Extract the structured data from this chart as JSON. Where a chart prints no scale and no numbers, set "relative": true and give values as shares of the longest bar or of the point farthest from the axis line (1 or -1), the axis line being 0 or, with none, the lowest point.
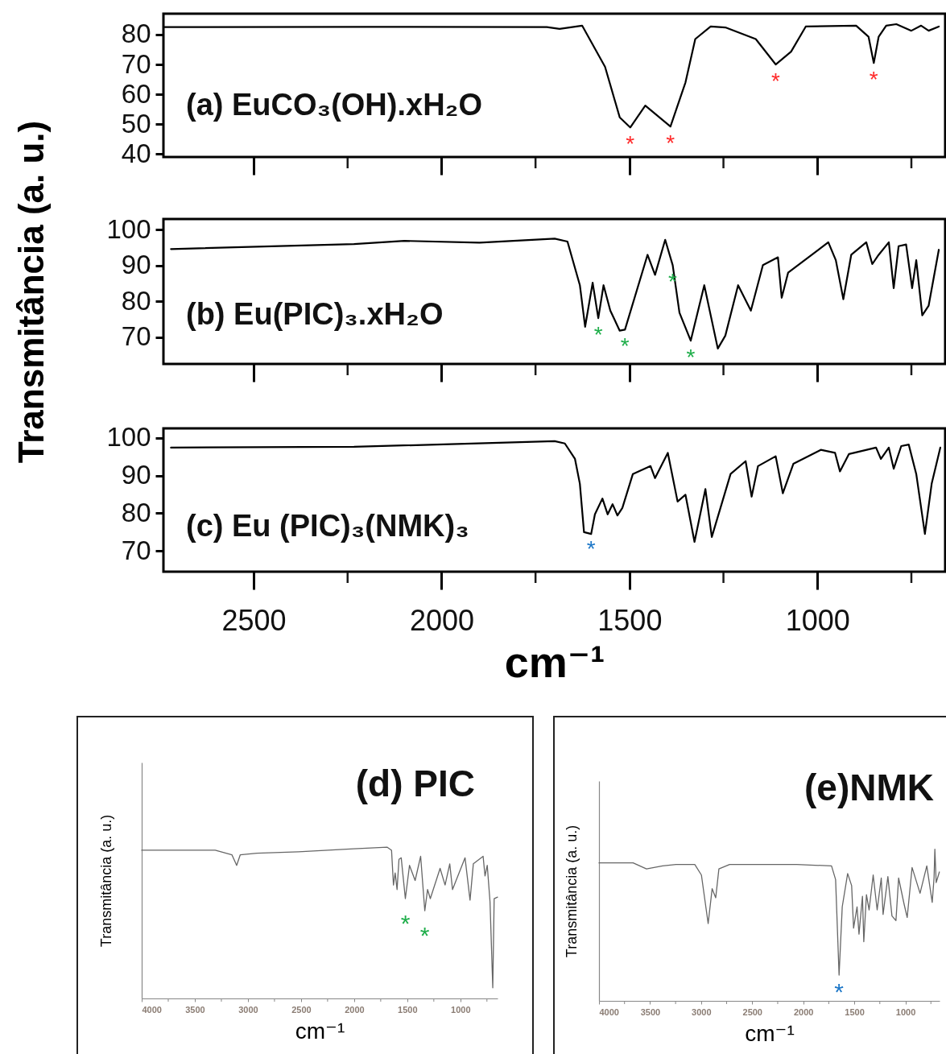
{
  "chart_data": [
    {
      "type": "line",
      "title": "(a) EuCO₃(OH).xH₂O",
      "color": "#000000",
      "xlim": [
        2740,
        660
      ],
      "xticks": [
        2500,
        {
          "value": 2250,
          "label": null
        },
        2000,
        {
          "value": 1750,
          "label": null
        },
        1500,
        {
          "value": 1250,
          "label": null
        },
        1000,
        {
          "value": 750,
          "label": null
        }
      ],
      "ylim": [
        39,
        87
      ],
      "yticks": [
        40,
        50,
        60,
        70,
        80
      ],
      "tick_labels": "y",
      "x": [
        2740,
        2200,
        1720,
        1686,
        1626,
        1565,
        1526,
        1498,
        1458,
        1391,
        1351,
        1325,
        1284,
        1245,
        1164,
        1111,
        1070,
        1031,
        897,
        864,
        850,
        837,
        817,
        790,
        750,
        724,
        704,
        677
      ],
      "values": [
        82.5,
        82.6,
        82.5,
        81.9,
        83,
        69.2,
        52.3,
        48.9,
        56.2,
        49.2,
        64,
        78.5,
        82.7,
        82.4,
        78.5,
        70,
        74.3,
        82.7,
        83,
        79.3,
        70.5,
        79.3,
        83,
        83.5,
        81.3,
        83,
        81.3,
        82.7
      ],
      "annotations": [
        {
          "text": "*",
          "x": 1498,
          "y": 48.9
        },
        {
          "text": "*",
          "x": 1391,
          "y": 49.2
        },
        {
          "text": "*",
          "x": 1111,
          "y": 70
        },
        {
          "text": "*",
          "x": 850,
          "y": 70.5
        }
      ]
    },
    {
      "type": "line",
      "title": "(b) Eu(PIC)₃.xH₂O",
      "ylabel": "Transmitância (a. u.)",
      "color": "#000000",
      "xlim": [
        2740,
        660
      ],
      "xticks": [
        2500,
        {
          "value": 2250,
          "label": null
        },
        2000,
        {
          "value": 1750,
          "label": null
        },
        1500,
        {
          "value": 1250,
          "label": null
        },
        1000,
        {
          "value": 750,
          "label": null
        }
      ],
      "ylim": [
        62.5,
        103
      ],
      "yticks": [
        70,
        80,
        90,
        100
      ],
      "tick_labels": "y",
      "x": [
        2720,
        2233,
        2099,
        1899,
        1699,
        1665,
        1632,
        1618,
        1598,
        1583,
        1569,
        1551,
        1526,
        1512,
        1452,
        1432,
        1405,
        1385,
        1367,
        1337,
        1301,
        1265,
        1245,
        1211,
        1177,
        1145,
        1105,
        1095,
        1078,
        971,
        951,
        931,
        910,
        870,
        854,
        837,
        810,
        797,
        784,
        764,
        748,
        737,
        721,
        704,
        677
      ],
      "values": [
        94.6,
        96.0,
        96.9,
        96.4,
        97.5,
        96.7,
        84.5,
        72.9,
        85.2,
        75.3,
        84.5,
        77.4,
        71.8,
        72.1,
        93.0,
        87.4,
        97.2,
        90.1,
        76.8,
        69.0,
        84.5,
        66.8,
        70.4,
        84.5,
        77.4,
        90.1,
        92.3,
        81.0,
        88.0,
        96.5,
        91.5,
        80.6,
        93.0,
        96.5,
        90.4,
        93.0,
        96.5,
        83.7,
        95.4,
        95.9,
        83.7,
        91.5,
        76.1,
        78.8,
        94.4
      ],
      "annotations": [
        {
          "text": "*",
          "x": 1583,
          "y": 75.3
        },
        {
          "text": "*",
          "x": 1512,
          "y": 72.1
        },
        {
          "text": "*",
          "x": 1385,
          "y": 90.1
        },
        {
          "text": "*",
          "x": 1337,
          "y": 69.0
        }
      ]
    },
    {
      "type": "line",
      "title": "(c) Eu (PIC)₃(NMK)₃",
      "xlabel": "cm⁻¹",
      "color": "#000000",
      "xlim": [
        2740,
        660
      ],
      "xticks": [
        2500,
        {
          "value": 2250,
          "label": null
        },
        2000,
        {
          "value": 1750,
          "label": null
        },
        1500,
        {
          "value": 1250,
          "label": null
        },
        1000,
        {
          "value": 750,
          "label": null
        }
      ],
      "ylim": [
        64.5,
        102.5
      ],
      "yticks": [
        70,
        80,
        90,
        100
      ],
      "x": [
        2720,
        2233,
        1699,
        1672,
        1645,
        1632,
        1621,
        1602,
        1592,
        1572,
        1558,
        1545,
        1532,
        1519,
        1491,
        1444,
        1432,
        1398,
        1372,
        1351,
        1327,
        1298,
        1281,
        1231,
        1191,
        1175,
        1158,
        1111,
        1092,
        1064,
        991,
        953,
        940,
        916,
        844,
        831,
        810,
        797,
        777,
        757,
        737,
        714,
        696,
        673
      ],
      "values": [
        97.4,
        97.6,
        99.1,
        98.5,
        94.4,
        87.8,
        75.0,
        74.5,
        79.7,
        83.9,
        79.7,
        82.4,
        79.4,
        81.4,
        90.4,
        92.5,
        89.3,
        96.0,
        83.1,
        84.9,
        72.4,
        86.4,
        73.7,
        90.4,
        93.8,
        84.4,
        92.5,
        95.1,
        85.3,
        93.1,
        96.8,
        96.0,
        91.1,
        95.7,
        97.4,
        94.4,
        97.4,
        91.8,
        97.8,
        98.2,
        90.4,
        74.5,
        87.8,
        97.4
      ],
      "annotations": [
        {
          "text": "*",
          "x": 1602,
          "y": 74.5
        }
      ]
    },
    {
      "type": "line",
      "title": "(d) PIC",
      "xlabel": "cm⁻¹",
      "ylabel": "Transmitância (a. u.)",
      "relative": true,
      "color": "#666666",
      "xlim": [
        4000,
        650
      ],
      "xticks": [
        4000,
        {
          "value": 3750,
          "label": null
        },
        3500,
        {
          "value": 3250,
          "label": null
        },
        3000,
        {
          "value": 2750,
          "label": null
        },
        2500,
        {
          "value": 2250,
          "label": null
        },
        2000,
        {
          "value": 1750,
          "label": null
        },
        1500,
        {
          "value": 1250,
          "label": null
        },
        1000,
        {
          "value": 750,
          "label": null
        }
      ],
      "x": [
        4000,
        3308,
        3151,
        3106,
        3072,
        2916,
        2524,
        2001,
        1688,
        1648,
        1630,
        1614,
        1596,
        1578,
        1557,
        1518,
        1479,
        1426,
        1374,
        1335,
        1309,
        1283,
        1191,
        1144,
        1100,
        1074,
        956,
        909,
        878,
        786,
        768,
        747,
        721,
        695,
        682,
        650
      ],
      "values": [
        0.98,
        0.98,
        0.95,
        0.88,
        0.95,
        0.96,
        0.97,
        0.99,
        1,
        0.98,
        0.75,
        0.83,
        0.72,
        0.92,
        0.93,
        0.66,
        0.88,
        0.78,
        0.94,
        0.58,
        0.72,
        0.66,
        0.86,
        0.75,
        0.89,
        0.72,
        0.93,
        0.65,
        0.89,
        0.94,
        0.81,
        0.88,
        0.64,
        0.07,
        0.66,
        0.67
      ],
      "annotations": [
        {
          "text": "*",
          "x": 1518,
          "y": 0.66
        },
        {
          "text": "*",
          "x": 1335,
          "y": 0.58
        }
      ]
    },
    {
      "type": "line",
      "title": "(e)NMK",
      "xlabel": "cm⁻¹",
      "ylabel": "Transmitância (a. u.)",
      "relative": true,
      "color": "#666666",
      "xlim": [
        4000,
        665
      ],
      "xticks": [
        4000,
        {
          "value": 3750,
          "label": null
        },
        3500,
        {
          "value": 3250,
          "label": null
        },
        3000,
        {
          "value": 2750,
          "label": null
        },
        2500,
        {
          "value": 2250,
          "label": null
        },
        2000,
        {
          "value": 1750,
          "label": null
        },
        1500,
        {
          "value": 1250,
          "label": null
        },
        1000,
        {
          "value": 750,
          "label": null
        }
      ],
      "x": [
        4000,
        3666,
        3535,
        3377,
        3246,
        3062,
        2997,
        2931,
        2892,
        2857,
        2826,
        2721,
        2064,
        1723,
        1683,
        1649,
        1618,
        1565,
        1526,
        1507,
        1473,
        1454,
        1420,
        1407,
        1381,
        1355,
        1315,
        1276,
        1236,
        1218,
        1171,
        1131,
        1092,
        1066,
        1013,
        982,
        934,
        856,
        790,
        737,
        719,
        711,
        698,
        667
      ],
      "values": [
        0.91,
        0.91,
        0.87,
        0.89,
        0.9,
        0.9,
        0.83,
        0.51,
        0.74,
        0.68,
        0.87,
        0.9,
        0.9,
        0.89,
        0.8,
        0.17,
        0.62,
        0.84,
        0.76,
        0.48,
        0.62,
        0.44,
        0.69,
        0.39,
        0.7,
        0.6,
        0.83,
        0.6,
        0.81,
        0.57,
        0.82,
        0.56,
        0.53,
        0.81,
        0.64,
        0.55,
        0.88,
        0.71,
        0.89,
        0.65,
        0.81,
        1,
        0.78,
        0.85
      ],
      "annotations": [
        {
          "text": "*",
          "x": 1649,
          "y": 0.17
        }
      ]
    }
  ]
}
